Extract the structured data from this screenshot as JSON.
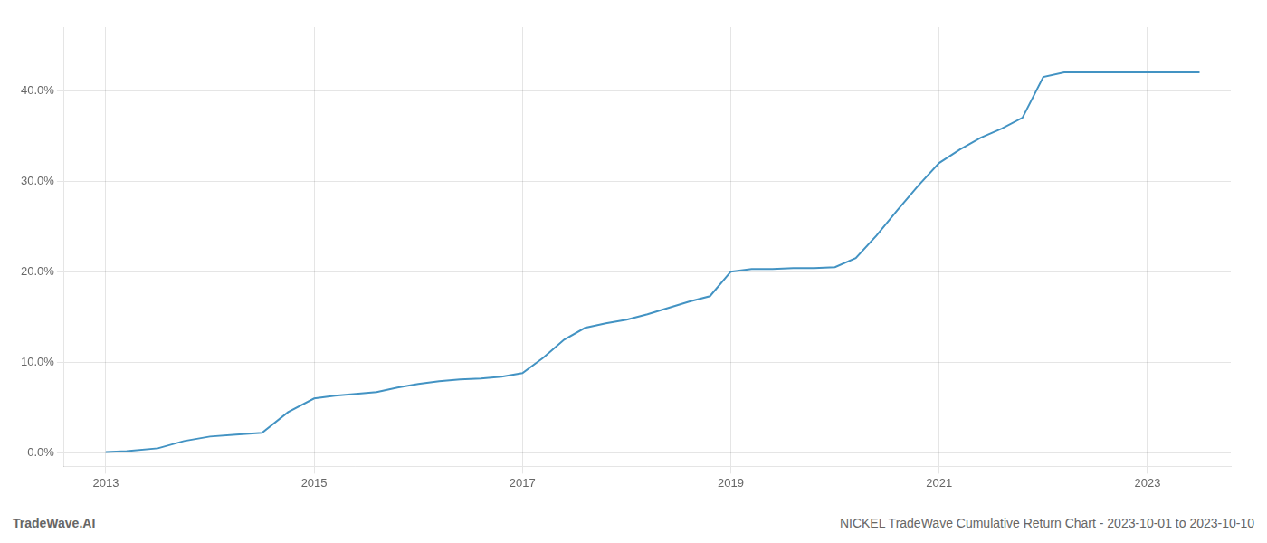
{
  "chart_data": {
    "type": "line",
    "annotations": [
      "TradeWave.AI",
      "NICKEL TradeWave Cumulative Return Chart - 2023-10-01 to 2023-10-10"
    ],
    "x": [
      2013.0,
      2013.2,
      2013.5,
      2013.75,
      2014.0,
      2014.25,
      2014.5,
      2014.75,
      2015.0,
      2015.2,
      2015.4,
      2015.6,
      2015.8,
      2016.0,
      2016.2,
      2016.4,
      2016.6,
      2016.8,
      2017.0,
      2017.2,
      2017.4,
      2017.6,
      2017.8,
      2018.0,
      2018.2,
      2018.4,
      2018.6,
      2018.8,
      2019.0,
      2019.2,
      2019.4,
      2019.6,
      2019.8,
      2020.0,
      2020.2,
      2020.4,
      2020.6,
      2020.8,
      2021.0,
      2021.2,
      2021.4,
      2021.6,
      2021.8,
      2022.0,
      2022.2,
      2022.4,
      2022.6,
      2022.8,
      2023.0,
      2023.5
    ],
    "values": [
      0.001,
      0.002,
      0.005,
      0.013,
      0.018,
      0.02,
      0.022,
      0.045,
      0.06,
      0.063,
      0.065,
      0.067,
      0.072,
      0.076,
      0.079,
      0.081,
      0.082,
      0.084,
      0.088,
      0.105,
      0.125,
      0.138,
      0.143,
      0.147,
      0.153,
      0.16,
      0.167,
      0.173,
      0.2,
      0.203,
      0.203,
      0.204,
      0.204,
      0.205,
      0.215,
      0.24,
      0.268,
      0.295,
      0.32,
      0.335,
      0.348,
      0.358,
      0.37,
      0.415,
      0.42,
      0.42,
      0.42,
      0.42,
      0.42,
      0.42
    ],
    "color": "#4393c3",
    "xlim": [
      2012.6,
      2023.8
    ],
    "xticks": [
      2013,
      2015,
      2017,
      2019,
      2021,
      2023
    ],
    "ylim": [
      -0.015,
      0.47
    ],
    "yticks": [
      {
        "value": 0.0,
        "label": "0.0%"
      },
      {
        "value": 0.1,
        "label": "10.0%"
      },
      {
        "value": 0.2,
        "label": "20.0%"
      },
      {
        "value": 0.3,
        "label": "30.0%"
      },
      {
        "value": 0.4,
        "label": "40.0%"
      }
    ],
    "grid": true
  }
}
